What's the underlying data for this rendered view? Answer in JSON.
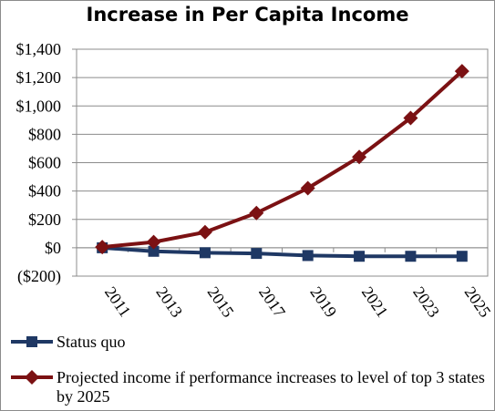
{
  "chart_data": {
    "type": "line",
    "title": "Increase in Per Capita Income",
    "xlabel": "",
    "ylabel": "",
    "x": [
      "2011",
      "2013",
      "2015",
      "2017",
      "2019",
      "2021",
      "2023",
      "2025"
    ],
    "ylim": [
      -200,
      1400
    ],
    "y_ticks": [
      -200,
      0,
      200,
      400,
      600,
      800,
      1000,
      1200,
      1400
    ],
    "y_tick_labels": [
      "($200)",
      "$0",
      "$200",
      "$400",
      "$600",
      "$800",
      "$1,000",
      "$1,200",
      "$1,400"
    ],
    "grid": "horizontal",
    "legend_position": "bottom",
    "series": [
      {
        "name": "Status quo",
        "color": "#1f3864",
        "marker": "square",
        "values": [
          0,
          -25,
          -35,
          -40,
          -55,
          -60,
          -60,
          -60
        ]
      },
      {
        "name": "Projected income if performance increases to level of top 3 states by 2025",
        "color": "#7b1113",
        "marker": "diamond",
        "values": [
          5,
          40,
          110,
          245,
          420,
          640,
          915,
          1245
        ]
      }
    ]
  }
}
